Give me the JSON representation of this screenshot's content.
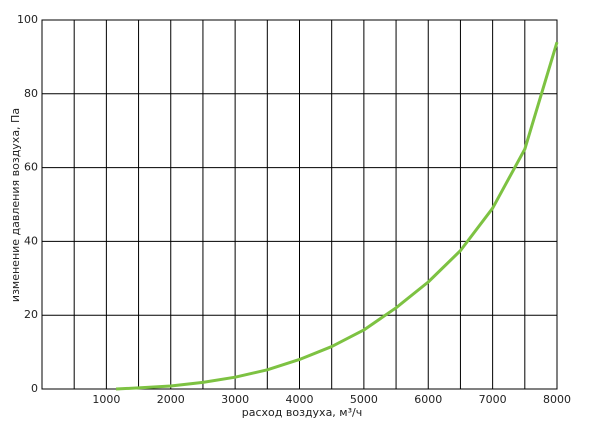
{
  "chart_data": {
    "type": "line",
    "xlabel": "расход воздуха, м³/ч",
    "ylabel": "изменение давления воздуха, Па",
    "x": [
      1150,
      1500,
      2000,
      2500,
      3000,
      3500,
      4000,
      4500,
      5000,
      5500,
      6000,
      6500,
      7000,
      7500,
      8000
    ],
    "series": [
      {
        "color": "#7dc242",
        "values": [
          0,
          0.3,
          0.8,
          1.8,
          3.2,
          5.2,
          8,
          11.5,
          16,
          22,
          29,
          37.5,
          49,
          65,
          94
        ]
      }
    ],
    "xlim": [
      0,
      8000
    ],
    "ylim": [
      0,
      100
    ],
    "xticks": [
      1000,
      2000,
      3000,
      4000,
      5000,
      6000,
      7000,
      8000
    ],
    "xminor": [
      500,
      1500,
      2500,
      3500,
      4500,
      5500,
      6500,
      7500
    ],
    "yticks": [
      0,
      20,
      40,
      60,
      80,
      100
    ],
    "grid": true
  }
}
